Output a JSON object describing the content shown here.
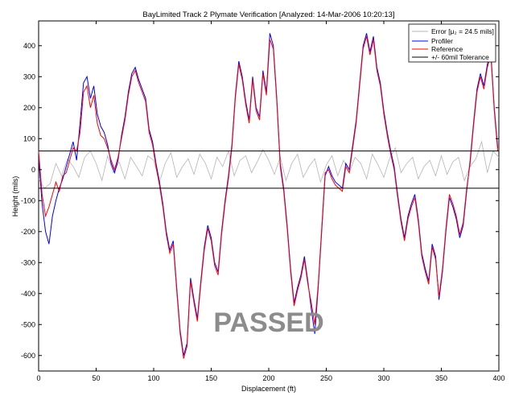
{
  "chart_data": {
    "type": "line",
    "title": "BayLimited Track 2 Plymate Verification [Analyzed: 14-Mar-2006 10:20:13]",
    "xlabel": "Displacement (ft)",
    "ylabel": "Height (mils)",
    "xlim": [
      0,
      400
    ],
    "ylim": [
      -650,
      480
    ],
    "x_ticks": [
      0,
      50,
      100,
      150,
      200,
      250,
      300,
      350,
      400
    ],
    "y_ticks": [
      -600,
      -500,
      -400,
      -300,
      -200,
      -100,
      0,
      100,
      200,
      300,
      400
    ],
    "grid": false,
    "legend_position": "top-right",
    "stamp": "PASSED",
    "tolerance": 60,
    "series": [
      {
        "name": "Error [μ₂ = 24.5 mils]",
        "legend": "Error [μ₂ = 24.5 mils]",
        "color": "#b4b4b4",
        "x": [
          0,
          5,
          10,
          15,
          20,
          25,
          30,
          35,
          40,
          45,
          50,
          55,
          60,
          65,
          70,
          75,
          80,
          85,
          90,
          95,
          100,
          105,
          110,
          115,
          120,
          125,
          130,
          135,
          140,
          145,
          150,
          155,
          160,
          165,
          170,
          175,
          180,
          185,
          190,
          195,
          200,
          205,
          210,
          215,
          220,
          225,
          230,
          235,
          240,
          245,
          250,
          255,
          260,
          265,
          270,
          275,
          280,
          285,
          290,
          295,
          300,
          305,
          310,
          315,
          320,
          325,
          330,
          335,
          340,
          345,
          350,
          355,
          360,
          365,
          370,
          375,
          380,
          385,
          390,
          395,
          400
        ],
        "y": [
          -30,
          -60,
          -45,
          20,
          -20,
          35,
          10,
          -25,
          40,
          60,
          20,
          -35,
          45,
          -10,
          25,
          -30,
          40,
          10,
          -20,
          45,
          30,
          -40,
          20,
          55,
          -25,
          10,
          35,
          -15,
          50,
          20,
          -30,
          40,
          10,
          60,
          -20,
          30,
          45,
          -10,
          25,
          65,
          30,
          -15,
          40,
          -35,
          20,
          50,
          -25,
          10,
          35,
          -40,
          15,
          45,
          -20,
          30,
          -10,
          40,
          20,
          -30,
          50,
          15,
          -25,
          35,
          70,
          -10,
          20,
          40,
          -30,
          10,
          30,
          -20,
          45,
          -15,
          25,
          40,
          -35,
          10,
          35,
          90,
          -10,
          60,
          40
        ]
      },
      {
        "name": "Profiler",
        "legend": "Profiler",
        "color": "#0000ff",
        "x": [
          0,
          3,
          6,
          9,
          12,
          15,
          18,
          21,
          24,
          27,
          30,
          33,
          36,
          39,
          42,
          45,
          48,
          51,
          54,
          57,
          60,
          63,
          66,
          69,
          72,
          75,
          78,
          81,
          84,
          87,
          90,
          93,
          96,
          99,
          102,
          105,
          108,
          111,
          114,
          117,
          120,
          123,
          126,
          129,
          132,
          135,
          138,
          141,
          144,
          147,
          150,
          153,
          156,
          159,
          162,
          165,
          168,
          171,
          174,
          177,
          180,
          183,
          186,
          189,
          192,
          195,
          198,
          201,
          204,
          207,
          210,
          213,
          216,
          219,
          222,
          225,
          228,
          231,
          234,
          237,
          240,
          243,
          246,
          249,
          252,
          255,
          258,
          261,
          264,
          267,
          270,
          273,
          276,
          279,
          282,
          285,
          288,
          291,
          294,
          297,
          300,
          303,
          306,
          309,
          312,
          315,
          318,
          321,
          324,
          327,
          330,
          333,
          336,
          339,
          342,
          345,
          348,
          351,
          354,
          357,
          360,
          363,
          366,
          369,
          372,
          375,
          378,
          381,
          384,
          387,
          390,
          393,
          396,
          399
        ],
        "y": [
          40,
          -110,
          -200,
          -240,
          -150,
          -100,
          -60,
          -30,
          10,
          50,
          90,
          30,
          150,
          280,
          300,
          230,
          270,
          180,
          140,
          120,
          80,
          20,
          -10,
          30,
          110,
          170,
          250,
          310,
          330,
          290,
          260,
          230,
          130,
          90,
          20,
          -40,
          -110,
          -200,
          -260,
          -230,
          -380,
          -520,
          -600,
          -560,
          -350,
          -420,
          -480,
          -360,
          -250,
          -180,
          -220,
          -300,
          -330,
          -200,
          -100,
          -20,
          80,
          240,
          350,
          300,
          220,
          160,
          300,
          200,
          170,
          320,
          250,
          440,
          400,
          230,
          20,
          -60,
          -180,
          -320,
          -430,
          -380,
          -340,
          -280,
          -360,
          -450,
          -530,
          -380,
          -200,
          -20,
          10,
          -20,
          -40,
          -50,
          -60,
          20,
          0,
          80,
          160,
          280,
          400,
          440,
          380,
          430,
          330,
          280,
          190,
          120,
          60,
          10,
          -80,
          -160,
          -220,
          -150,
          -110,
          -80,
          -160,
          -270,
          -320,
          -360,
          -240,
          -280,
          -420,
          -330,
          -200,
          -90,
          -120,
          -160,
          -220,
          -180,
          -70,
          30,
          150,
          260,
          310,
          270,
          340,
          380,
          200,
          70
        ]
      },
      {
        "name": "Reference",
        "legend": "Reference",
        "color": "#ff0000",
        "x": [
          0,
          3,
          6,
          9,
          12,
          15,
          18,
          21,
          24,
          27,
          30,
          33,
          36,
          39,
          42,
          45,
          48,
          51,
          54,
          57,
          60,
          63,
          66,
          69,
          72,
          75,
          78,
          81,
          84,
          87,
          90,
          93,
          96,
          99,
          102,
          105,
          108,
          111,
          114,
          117,
          120,
          123,
          126,
          129,
          132,
          135,
          138,
          141,
          144,
          147,
          150,
          153,
          156,
          159,
          162,
          165,
          168,
          171,
          174,
          177,
          180,
          183,
          186,
          189,
          192,
          195,
          198,
          201,
          204,
          207,
          210,
          213,
          216,
          219,
          222,
          225,
          228,
          231,
          234,
          237,
          240,
          243,
          246,
          249,
          252,
          255,
          258,
          261,
          264,
          267,
          270,
          273,
          276,
          279,
          282,
          285,
          288,
          291,
          294,
          297,
          300,
          303,
          306,
          309,
          312,
          315,
          318,
          321,
          324,
          327,
          330,
          333,
          336,
          339,
          342,
          345,
          348,
          351,
          354,
          357,
          360,
          363,
          366,
          369,
          372,
          375,
          378,
          381,
          384,
          387,
          390,
          393,
          396,
          399
        ],
        "y": [
          60,
          -80,
          -150,
          -120,
          -80,
          -40,
          -70,
          -20,
          -10,
          30,
          70,
          60,
          120,
          250,
          270,
          200,
          240,
          150,
          110,
          100,
          70,
          30,
          0,
          40,
          100,
          160,
          240,
          300,
          320,
          280,
          250,
          220,
          120,
          80,
          10,
          -50,
          -120,
          -210,
          -270,
          -240,
          -390,
          -530,
          -610,
          -570,
          -360,
          -430,
          -490,
          -370,
          -260,
          -190,
          -230,
          -310,
          -340,
          -210,
          -110,
          -30,
          70,
          230,
          340,
          290,
          210,
          150,
          290,
          190,
          160,
          310,
          240,
          420,
          390,
          220,
          10,
          -70,
          -190,
          -330,
          -440,
          -390,
          -350,
          -290,
          -370,
          -430,
          -500,
          -370,
          -190,
          -10,
          0,
          -30,
          -50,
          -60,
          -70,
          10,
          -10,
          70,
          150,
          270,
          390,
          430,
          370,
          420,
          320,
          270,
          180,
          110,
          50,
          0,
          -90,
          -170,
          -230,
          -160,
          -120,
          -90,
          -170,
          -280,
          -330,
          -370,
          -250,
          -290,
          -410,
          -320,
          -190,
          -80,
          -110,
          -150,
          -210,
          -170,
          -60,
          20,
          140,
          250,
          300,
          260,
          330,
          370,
          190,
          60
        ]
      },
      {
        "name": "+/- 60mil Tolerance",
        "legend": "+/- 60mil Tolerance",
        "color": "#000000",
        "x": [
          0,
          400
        ],
        "y_upper": [
          60,
          60
        ],
        "y_lower": [
          -60,
          -60
        ]
      }
    ]
  }
}
